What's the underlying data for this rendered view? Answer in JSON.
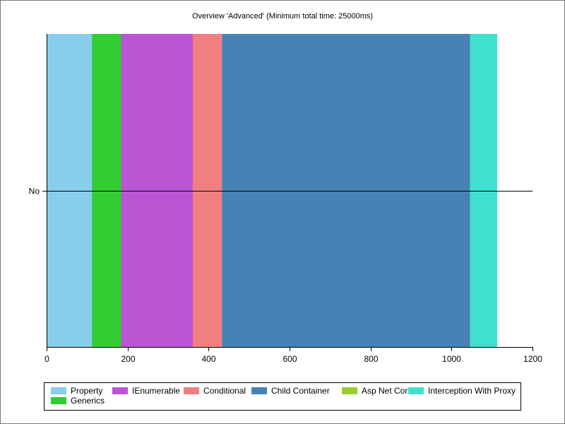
{
  "chart_data": {
    "type": "bar",
    "orientation": "horizontal",
    "stacked": true,
    "title": "Overview 'Advanced' (Minimum total time: 25000ms)",
    "categories": [
      "No"
    ],
    "xlim": [
      0,
      1200
    ],
    "xticks": [
      "0",
      "200",
      "400",
      "600",
      "800",
      "1000",
      "1200"
    ],
    "grid": false,
    "legend_position": "bottom",
    "series": [
      {
        "name": "Property",
        "values": [
          112
        ],
        "color": "#87CEEB"
      },
      {
        "name": "Generics",
        "values": [
          72
        ],
        "color": "#32CD32"
      },
      {
        "name": "IEnumerable",
        "values": [
          177
        ],
        "color": "#BA55D3"
      },
      {
        "name": "Conditional",
        "values": [
          72
        ],
        "color": "#F08080"
      },
      {
        "name": "Child Container",
        "values": [
          613
        ],
        "color": "#4682B4"
      },
      {
        "name": "Asp Net Core",
        "values": [
          0
        ],
        "color": "#9ACD32"
      },
      {
        "name": "Interception With Proxy",
        "values": [
          67
        ],
        "color": "#40E0D0"
      }
    ]
  }
}
